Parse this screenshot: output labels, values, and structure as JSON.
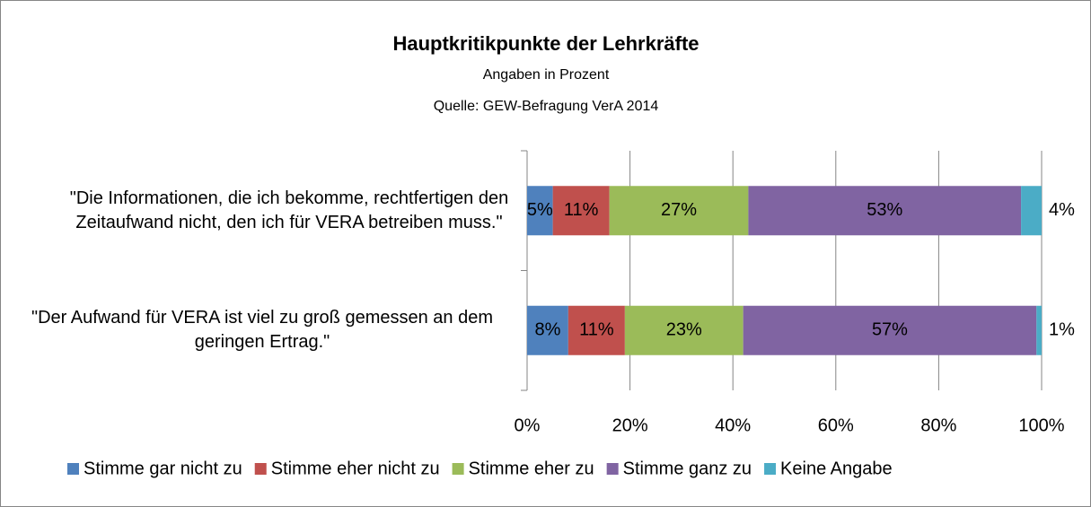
{
  "chart_data": {
    "type": "stacked-bar-horizontal",
    "title": "Hauptkritikpunkte der Lehrkräfte",
    "subtitle": "Angaben in Prozent",
    "source": "Quelle: GEW-Befragung VerA 2014",
    "categories": [
      "\"Die Informationen, die ich bekomme, rechtfertigen den Zeitaufwand nicht, den ich für VERA betreiben muss.\"",
      "\"Der Aufwand für VERA ist viel zu groß gemessen an dem geringen Ertrag.\""
    ],
    "series": [
      {
        "name": "Stimme gar nicht zu",
        "color": "#4f81bd",
        "values": [
          5,
          8
        ],
        "value_labels": [
          "5%",
          "8%"
        ]
      },
      {
        "name": "Stimme eher nicht zu",
        "color": "#c0504d",
        "values": [
          11,
          11
        ],
        "value_labels": [
          "11%",
          "11%"
        ]
      },
      {
        "name": "Stimme eher zu",
        "color": "#9bbb59",
        "values": [
          27,
          23
        ],
        "value_labels": [
          "27%",
          "23%"
        ]
      },
      {
        "name": "Stimme ganz zu",
        "color": "#8064a2",
        "values": [
          53,
          57
        ],
        "value_labels": [
          "53%",
          "57%"
        ]
      },
      {
        "name": "Keine Angabe",
        "color": "#4bacc6",
        "values": [
          4,
          1
        ],
        "value_labels": [
          "4%",
          "1%"
        ]
      }
    ],
    "xlim": [
      0,
      100
    ],
    "xticks": [
      {
        "value": 0,
        "label": "0%"
      },
      {
        "value": 20,
        "label": "20%"
      },
      {
        "value": 40,
        "label": "40%"
      },
      {
        "value": 60,
        "label": "60%"
      },
      {
        "value": 80,
        "label": "80%"
      },
      {
        "value": 100,
        "label": "100%"
      }
    ],
    "grid": true,
    "legend": "bottom"
  }
}
